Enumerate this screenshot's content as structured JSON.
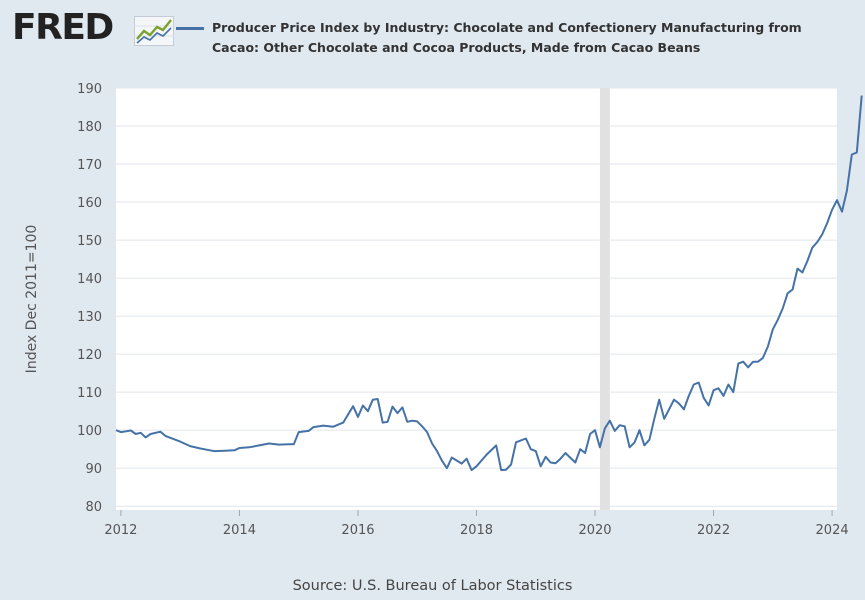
{
  "logo": {
    "text": "FRED",
    "registered": "®"
  },
  "legend": {
    "label": "Producer Price Index by Industry: Chocolate and Confectionery Manufacturing from Cacao: Other Chocolate and Cocoa Products, Made from Cacao Beans"
  },
  "source": "Source: U.S. Bureau of Labor Statistics",
  "colors": {
    "series": "#4572a7",
    "background": "#e1e9f0",
    "plot_background": "#ffffff",
    "recession": "#e1e1e1",
    "gridline": "#e0e6ec"
  },
  "chart_data": {
    "type": "line",
    "title": "Producer Price Index by Industry: Chocolate and Confectionery Manufacturing from Cacao: Other Chocolate and Cocoa Products, Made from Cacao Beans",
    "ylabel": "Index Dec 2011=100",
    "xlabel": "",
    "xlim": [
      2011.917,
      2024.083
    ],
    "ylim": [
      79,
      190
    ],
    "yticks": [
      80,
      90,
      100,
      110,
      120,
      130,
      140,
      150,
      160,
      170,
      180,
      190
    ],
    "xticks": [
      2012,
      2014,
      2016,
      2018,
      2020,
      2022,
      2024
    ],
    "recession": {
      "start": 2020.083,
      "end": 2020.25
    },
    "series": [
      {
        "name": "Producer Price Index by Industry: Chocolate and Confectionery Manufacturing from Cacao: Other Chocolate and Cocoa Products, Made from Cacao Beans",
        "points": [
          [
            2011.917,
            100.0
          ],
          [
            2012.0,
            99.5
          ],
          [
            2012.167,
            99.9
          ],
          [
            2012.25,
            99.0
          ],
          [
            2012.333,
            99.3
          ],
          [
            2012.417,
            98.1
          ],
          [
            2012.5,
            99.0
          ],
          [
            2012.667,
            99.6
          ],
          [
            2012.75,
            98.5
          ],
          [
            2013.0,
            97.0
          ],
          [
            2013.167,
            95.8
          ],
          [
            2013.333,
            95.2
          ],
          [
            2013.5,
            94.7
          ],
          [
            2013.583,
            94.5
          ],
          [
            2013.75,
            94.6
          ],
          [
            2013.917,
            94.7
          ],
          [
            2014.0,
            95.3
          ],
          [
            2014.167,
            95.5
          ],
          [
            2014.333,
            96.0
          ],
          [
            2014.5,
            96.5
          ],
          [
            2014.667,
            96.2
          ],
          [
            2014.833,
            96.3
          ],
          [
            2014.917,
            96.3
          ],
          [
            2015.0,
            99.5
          ],
          [
            2015.167,
            99.8
          ],
          [
            2015.25,
            100.8
          ],
          [
            2015.417,
            101.2
          ],
          [
            2015.583,
            100.9
          ],
          [
            2015.75,
            102.0
          ],
          [
            2015.917,
            106.3
          ],
          [
            2016.0,
            103.5
          ],
          [
            2016.083,
            106.5
          ],
          [
            2016.167,
            105.0
          ],
          [
            2016.25,
            108.0
          ],
          [
            2016.333,
            108.2
          ],
          [
            2016.417,
            102.0
          ],
          [
            2016.5,
            102.2
          ],
          [
            2016.583,
            106.2
          ],
          [
            2016.667,
            104.5
          ],
          [
            2016.75,
            106.0
          ],
          [
            2016.833,
            102.2
          ],
          [
            2016.917,
            102.5
          ],
          [
            2017.0,
            102.3
          ],
          [
            2017.083,
            101.0
          ],
          [
            2017.167,
            99.5
          ],
          [
            2017.25,
            96.5
          ],
          [
            2017.333,
            94.5
          ],
          [
            2017.417,
            92.0
          ],
          [
            2017.5,
            90.0
          ],
          [
            2017.583,
            92.8
          ],
          [
            2017.75,
            91.2
          ],
          [
            2017.833,
            92.5
          ],
          [
            2017.917,
            89.5
          ],
          [
            2018.0,
            90.5
          ],
          [
            2018.167,
            93.5
          ],
          [
            2018.333,
            96.0
          ],
          [
            2018.417,
            89.5
          ],
          [
            2018.5,
            89.6
          ],
          [
            2018.583,
            91.0
          ],
          [
            2018.667,
            96.8
          ],
          [
            2018.833,
            97.8
          ],
          [
            2018.917,
            95.0
          ],
          [
            2019.0,
            94.5
          ],
          [
            2019.083,
            90.5
          ],
          [
            2019.167,
            93.0
          ],
          [
            2019.25,
            91.5
          ],
          [
            2019.333,
            91.3
          ],
          [
            2019.417,
            92.5
          ],
          [
            2019.5,
            94.0
          ],
          [
            2019.667,
            91.5
          ],
          [
            2019.75,
            95.0
          ],
          [
            2019.833,
            94.0
          ],
          [
            2019.917,
            99.0
          ],
          [
            2020.0,
            100.0
          ],
          [
            2020.083,
            95.5
          ],
          [
            2020.167,
            100.5
          ],
          [
            2020.25,
            102.5
          ],
          [
            2020.333,
            99.8
          ],
          [
            2020.417,
            101.3
          ],
          [
            2020.5,
            101.0
          ],
          [
            2020.583,
            95.5
          ],
          [
            2020.667,
            96.8
          ],
          [
            2020.75,
            100.0
          ],
          [
            2020.833,
            96.0
          ],
          [
            2020.917,
            97.5
          ],
          [
            2021.0,
            103.0
          ],
          [
            2021.083,
            108.0
          ],
          [
            2021.167,
            103.0
          ],
          [
            2021.25,
            105.5
          ],
          [
            2021.333,
            108.0
          ],
          [
            2021.417,
            107.0
          ],
          [
            2021.5,
            105.5
          ],
          [
            2021.583,
            109.0
          ],
          [
            2021.667,
            112.0
          ],
          [
            2021.75,
            112.5
          ],
          [
            2021.833,
            108.5
          ],
          [
            2021.917,
            106.5
          ],
          [
            2022.0,
            110.5
          ],
          [
            2022.083,
            111.0
          ],
          [
            2022.167,
            109.0
          ],
          [
            2022.25,
            112.0
          ],
          [
            2022.333,
            110.0
          ],
          [
            2022.417,
            117.5
          ],
          [
            2022.5,
            118.0
          ],
          [
            2022.583,
            116.5
          ],
          [
            2022.667,
            118.0
          ],
          [
            2022.75,
            118.0
          ],
          [
            2022.833,
            119.0
          ],
          [
            2022.917,
            122.0
          ],
          [
            2023.0,
            126.5
          ],
          [
            2023.083,
            129.0
          ],
          [
            2023.167,
            132.0
          ],
          [
            2023.25,
            136.0
          ],
          [
            2023.333,
            137.0
          ],
          [
            2023.417,
            142.5
          ],
          [
            2023.5,
            141.5
          ],
          [
            2023.583,
            144.5
          ],
          [
            2023.667,
            148.0
          ],
          [
            2023.75,
            149.5
          ],
          [
            2023.833,
            151.5
          ],
          [
            2023.917,
            154.5
          ],
          [
            2024.0,
            158.0
          ],
          [
            2024.083,
            160.5
          ],
          [
            2024.167,
            157.5
          ],
          [
            2024.25,
            163.0
          ],
          [
            2024.333,
            172.5
          ],
          [
            2024.417,
            173.0
          ],
          [
            2024.5,
            188.0
          ]
        ]
      }
    ]
  }
}
